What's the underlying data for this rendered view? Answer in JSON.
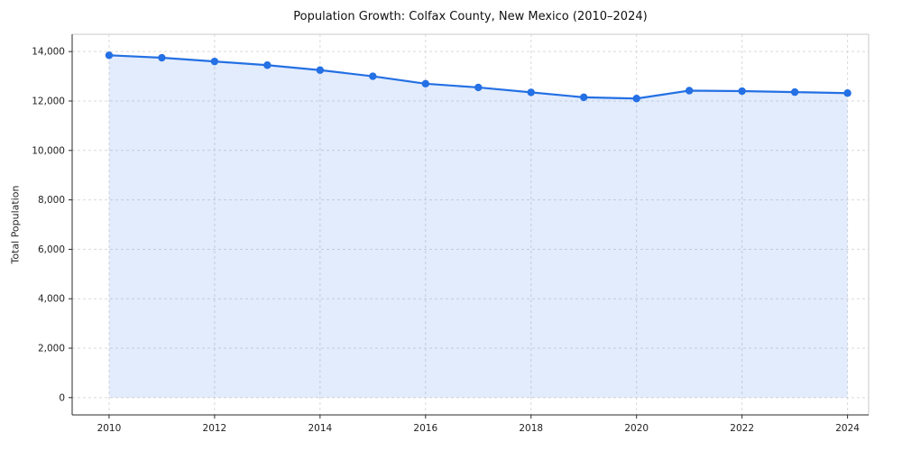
{
  "chart_data": {
    "type": "area",
    "title": "Population Growth: Colfax County, New Mexico (2010–2024)",
    "xlabel": "",
    "ylabel": "Total Population",
    "series_name": "Total Population",
    "x": [
      2010,
      2011,
      2012,
      2013,
      2014,
      2015,
      2016,
      2017,
      2018,
      2019,
      2020,
      2021,
      2022,
      2023,
      2024
    ],
    "values": [
      13850,
      13750,
      13600,
      13450,
      13250,
      13000,
      12700,
      12550,
      12350,
      12150,
      12100,
      12420,
      12400,
      12360,
      12320
    ],
    "xticks": [
      2010,
      2012,
      2014,
      2016,
      2018,
      2020,
      2022,
      2024
    ],
    "yticks": [
      0,
      2000,
      4000,
      6000,
      8000,
      10000,
      12000,
      14000
    ],
    "xlim": [
      2009.3,
      2024.4
    ],
    "ylim": [
      -700,
      14700
    ],
    "grid": true,
    "grid_style": "dashed",
    "grid_color": "#d9d9d9",
    "legend": "none",
    "marker": "circle",
    "line_color": "#2470e4",
    "fill_color": "rgba(36, 112, 228, 0.13)",
    "background": "#ffffff",
    "spine_color_dark": "#2b2b2b",
    "spine_color_light": "#c9c9c9",
    "tick_label_color": "#222222"
  }
}
